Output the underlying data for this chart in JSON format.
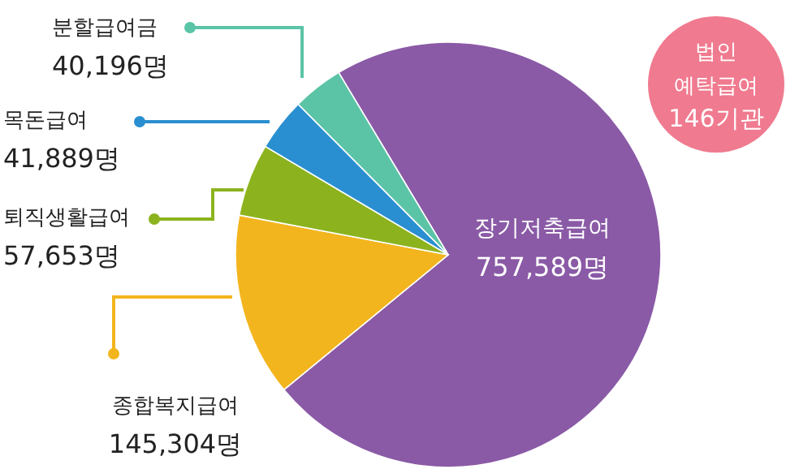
{
  "chart_data": {
    "type": "pie",
    "categories": [
      "장기저축급여",
      "종합복지급여",
      "퇴직생활급여",
      "목돈급여",
      "분할급여금"
    ],
    "values": [
      757589,
      145304,
      57653,
      41889,
      40196
    ],
    "value_labels": [
      "757,589명",
      "145,304명",
      "57,653명",
      "41,889명",
      "40,196명"
    ],
    "colors": [
      "#8a5aa6",
      "#f3b51e",
      "#8cb31e",
      "#2a8fd0",
      "#5bc4a6"
    ],
    "annotations": [
      "법인\n예탁급여\n146기관"
    ],
    "legend": "left"
  }
}
